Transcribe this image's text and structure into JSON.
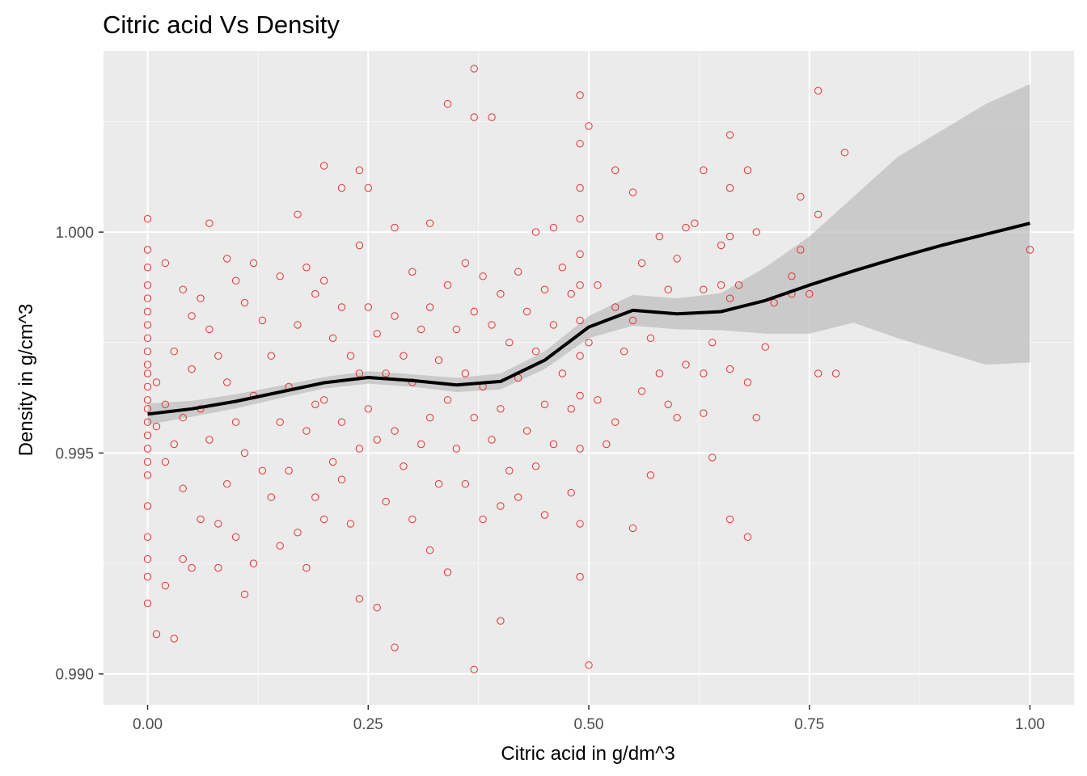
{
  "chart_data": {
    "type": "scatter",
    "title": "Citric acid Vs Density",
    "xlabel": "Citric acid in g/dm^3",
    "ylabel": "Density in g/cm^3",
    "xlim": [
      -0.05,
      1.05
    ],
    "ylim": [
      0.9893,
      1.0041
    ],
    "x_ticks": [
      0.0,
      0.25,
      0.5,
      0.75,
      1.0
    ],
    "x_tick_labels": [
      "0.00",
      "0.25",
      "0.50",
      "0.75",
      "1.00"
    ],
    "y_ticks": [
      0.99,
      0.995,
      1.0
    ],
    "y_tick_labels": [
      "0.990",
      "0.995",
      "1.000"
    ],
    "grid": true,
    "colors": {
      "panel_background": "#ebebeb",
      "grid_line": "#ffffff",
      "point_stroke": "#e8302d",
      "smooth_line": "#000000",
      "confidence_band": "#bfbfbf"
    },
    "series": [
      {
        "kind": "points",
        "points": [
          [
            0.0,
            1.0003
          ],
          [
            0.0,
            0.9996
          ],
          [
            0.0,
            0.9992
          ],
          [
            0.0,
            0.9988
          ],
          [
            0.0,
            0.9985
          ],
          [
            0.0,
            0.9982
          ],
          [
            0.0,
            0.9979
          ],
          [
            0.0,
            0.9976
          ],
          [
            0.0,
            0.9973
          ],
          [
            0.0,
            0.997
          ],
          [
            0.0,
            0.9968
          ],
          [
            0.0,
            0.9965
          ],
          [
            0.0,
            0.9962
          ],
          [
            0.0,
            0.996
          ],
          [
            0.0,
            0.9957
          ],
          [
            0.0,
            0.9954
          ],
          [
            0.0,
            0.9951
          ],
          [
            0.0,
            0.9948
          ],
          [
            0.0,
            0.9945
          ],
          [
            0.0,
            0.9938
          ],
          [
            0.0,
            0.9931
          ],
          [
            0.0,
            0.9926
          ],
          [
            0.0,
            0.9922
          ],
          [
            0.0,
            0.9916
          ],
          [
            0.01,
            0.9909
          ],
          [
            0.03,
            0.9908
          ],
          [
            0.01,
            0.9966
          ],
          [
            0.01,
            0.9956
          ],
          [
            0.02,
            0.9993
          ],
          [
            0.02,
            0.9961
          ],
          [
            0.02,
            0.9948
          ],
          [
            0.02,
            0.992
          ],
          [
            0.03,
            0.9973
          ],
          [
            0.03,
            0.9952
          ],
          [
            0.04,
            0.9987
          ],
          [
            0.04,
            0.9958
          ],
          [
            0.04,
            0.9942
          ],
          [
            0.04,
            0.9926
          ],
          [
            0.05,
            0.9981
          ],
          [
            0.05,
            0.9969
          ],
          [
            0.05,
            0.9924
          ],
          [
            0.06,
            0.9985
          ],
          [
            0.06,
            0.996
          ],
          [
            0.06,
            0.9935
          ],
          [
            0.07,
            1.0002
          ],
          [
            0.07,
            0.9978
          ],
          [
            0.07,
            0.9953
          ],
          [
            0.08,
            0.9972
          ],
          [
            0.08,
            0.9934
          ],
          [
            0.08,
            0.9924
          ],
          [
            0.09,
            0.9994
          ],
          [
            0.09,
            0.9966
          ],
          [
            0.09,
            0.9943
          ],
          [
            0.1,
            0.9989
          ],
          [
            0.1,
            0.9957
          ],
          [
            0.1,
            0.9931
          ],
          [
            0.11,
            0.9984
          ],
          [
            0.11,
            0.995
          ],
          [
            0.11,
            0.9918
          ],
          [
            0.12,
            0.9993
          ],
          [
            0.12,
            0.9963
          ],
          [
            0.12,
            0.9925
          ],
          [
            0.13,
            0.998
          ],
          [
            0.13,
            0.9946
          ],
          [
            0.14,
            0.9972
          ],
          [
            0.14,
            0.994
          ],
          [
            0.15,
            0.999
          ],
          [
            0.15,
            0.9957
          ],
          [
            0.15,
            0.9929
          ],
          [
            0.16,
            0.9965
          ],
          [
            0.16,
            0.9946
          ],
          [
            0.17,
            1.0004
          ],
          [
            0.17,
            0.9979
          ],
          [
            0.17,
            0.9932
          ],
          [
            0.18,
            0.9992
          ],
          [
            0.18,
            0.9955
          ],
          [
            0.18,
            0.9924
          ],
          [
            0.19,
            0.9986
          ],
          [
            0.19,
            0.9961
          ],
          [
            0.19,
            0.994
          ],
          [
            0.2,
            1.0015
          ],
          [
            0.2,
            0.9989
          ],
          [
            0.2,
            0.9962
          ],
          [
            0.2,
            0.9935
          ],
          [
            0.21,
            0.9976
          ],
          [
            0.21,
            0.9948
          ],
          [
            0.22,
            1.001
          ],
          [
            0.22,
            0.9983
          ],
          [
            0.22,
            0.9957
          ],
          [
            0.22,
            0.9944
          ],
          [
            0.23,
            0.9972
          ],
          [
            0.23,
            0.9934
          ],
          [
            0.24,
            1.0014
          ],
          [
            0.24,
            0.9997
          ],
          [
            0.24,
            0.9968
          ],
          [
            0.24,
            0.9951
          ],
          [
            0.24,
            0.9917
          ],
          [
            0.25,
            1.001
          ],
          [
            0.25,
            0.9983
          ],
          [
            0.25,
            0.996
          ],
          [
            0.26,
            0.9977
          ],
          [
            0.26,
            0.9953
          ],
          [
            0.26,
            0.9915
          ],
          [
            0.27,
            0.9968
          ],
          [
            0.27,
            0.9939
          ],
          [
            0.28,
            1.0001
          ],
          [
            0.28,
            0.9981
          ],
          [
            0.28,
            0.9955
          ],
          [
            0.28,
            0.9906
          ],
          [
            0.29,
            0.9972
          ],
          [
            0.29,
            0.9947
          ],
          [
            0.3,
            0.9991
          ],
          [
            0.3,
            0.9966
          ],
          [
            0.3,
            0.9935
          ],
          [
            0.31,
            0.9978
          ],
          [
            0.31,
            0.9952
          ],
          [
            0.32,
            1.0002
          ],
          [
            0.32,
            0.9983
          ],
          [
            0.32,
            0.9958
          ],
          [
            0.32,
            0.9928
          ],
          [
            0.33,
            0.9971
          ],
          [
            0.33,
            0.9943
          ],
          [
            0.34,
            1.0029
          ],
          [
            0.34,
            0.9988
          ],
          [
            0.34,
            0.9962
          ],
          [
            0.34,
            0.9923
          ],
          [
            0.35,
            0.9978
          ],
          [
            0.35,
            0.9951
          ],
          [
            0.36,
            0.9993
          ],
          [
            0.36,
            0.9968
          ],
          [
            0.36,
            0.9943
          ],
          [
            0.37,
            1.0037
          ],
          [
            0.37,
            1.0026
          ],
          [
            0.37,
            0.9982
          ],
          [
            0.37,
            0.9958
          ],
          [
            0.37,
            0.9901
          ],
          [
            0.38,
            0.999
          ],
          [
            0.38,
            0.9965
          ],
          [
            0.38,
            0.9935
          ],
          [
            0.39,
            1.0026
          ],
          [
            0.39,
            0.9979
          ],
          [
            0.39,
            0.9953
          ],
          [
            0.4,
            0.9986
          ],
          [
            0.4,
            0.996
          ],
          [
            0.4,
            0.9938
          ],
          [
            0.4,
            0.9912
          ],
          [
            0.41,
            0.9975
          ],
          [
            0.41,
            0.9946
          ],
          [
            0.42,
            0.9991
          ],
          [
            0.42,
            0.9967
          ],
          [
            0.42,
            0.994
          ],
          [
            0.43,
            0.9982
          ],
          [
            0.43,
            0.9955
          ],
          [
            0.44,
            1.0
          ],
          [
            0.44,
            0.9973
          ],
          [
            0.44,
            0.9947
          ],
          [
            0.45,
            0.9987
          ],
          [
            0.45,
            0.9961
          ],
          [
            0.45,
            0.9936
          ],
          [
            0.46,
            1.0001
          ],
          [
            0.46,
            0.9979
          ],
          [
            0.46,
            0.9952
          ],
          [
            0.47,
            0.9992
          ],
          [
            0.47,
            0.9968
          ],
          [
            0.48,
            0.9986
          ],
          [
            0.48,
            0.996
          ],
          [
            0.48,
            0.9941
          ],
          [
            0.49,
            1.0031
          ],
          [
            0.49,
            1.002
          ],
          [
            0.49,
            1.001
          ],
          [
            0.49,
            1.0003
          ],
          [
            0.49,
            0.9995
          ],
          [
            0.49,
            0.9988
          ],
          [
            0.49,
            0.998
          ],
          [
            0.49,
            0.9972
          ],
          [
            0.49,
            0.9963
          ],
          [
            0.49,
            0.9951
          ],
          [
            0.49,
            0.9934
          ],
          [
            0.49,
            0.9922
          ],
          [
            0.5,
            1.0024
          ],
          [
            0.5,
            0.9975
          ],
          [
            0.5,
            0.9902
          ],
          [
            0.51,
            0.9988
          ],
          [
            0.51,
            0.9962
          ],
          [
            0.52,
            0.9952
          ],
          [
            0.53,
            1.0014
          ],
          [
            0.53,
            0.9983
          ],
          [
            0.53,
            0.9957
          ],
          [
            0.54,
            0.9973
          ],
          [
            0.55,
            1.0009
          ],
          [
            0.55,
            0.998
          ],
          [
            0.55,
            0.9933
          ],
          [
            0.56,
            0.9993
          ],
          [
            0.56,
            0.9964
          ],
          [
            0.57,
            0.9945
          ],
          [
            0.57,
            0.9976
          ],
          [
            0.58,
            0.9999
          ],
          [
            0.58,
            0.9968
          ],
          [
            0.59,
            0.9987
          ],
          [
            0.59,
            0.9961
          ],
          [
            0.6,
            0.9994
          ],
          [
            0.6,
            0.9958
          ],
          [
            0.61,
            1.0001
          ],
          [
            0.61,
            0.997
          ],
          [
            0.62,
            1.0002
          ],
          [
            0.63,
            1.0014
          ],
          [
            0.63,
            0.9987
          ],
          [
            0.63,
            0.9968
          ],
          [
            0.63,
            0.9959
          ],
          [
            0.64,
            0.9949
          ],
          [
            0.64,
            0.9975
          ],
          [
            0.65,
            0.9997
          ],
          [
            0.65,
            0.9988
          ],
          [
            0.66,
            1.0022
          ],
          [
            0.66,
            1.001
          ],
          [
            0.66,
            0.9999
          ],
          [
            0.66,
            0.9985
          ],
          [
            0.66,
            0.9969
          ],
          [
            0.66,
            0.9935
          ],
          [
            0.67,
            0.9988
          ],
          [
            0.68,
            1.0014
          ],
          [
            0.68,
            0.9966
          ],
          [
            0.68,
            0.9931
          ],
          [
            0.69,
            1.0
          ],
          [
            0.69,
            0.9958
          ],
          [
            0.7,
            0.9974
          ],
          [
            0.71,
            0.9984
          ],
          [
            0.73,
            0.999
          ],
          [
            0.73,
            0.9986
          ],
          [
            0.74,
            1.0008
          ],
          [
            0.74,
            0.9996
          ],
          [
            0.75,
            0.9986
          ],
          [
            0.76,
            1.0032
          ],
          [
            0.76,
            1.0004
          ],
          [
            0.76,
            0.9968
          ],
          [
            0.78,
            0.9968
          ],
          [
            0.79,
            1.0018
          ],
          [
            1.0,
            0.9996
          ]
        ]
      },
      {
        "kind": "smooth",
        "line": [
          [
            0.0,
            0.99588
          ],
          [
            0.05,
            0.996
          ],
          [
            0.1,
            0.99617
          ],
          [
            0.15,
            0.99638
          ],
          [
            0.2,
            0.99659
          ],
          [
            0.25,
            0.99671
          ],
          [
            0.3,
            0.99664
          ],
          [
            0.35,
            0.99654
          ],
          [
            0.4,
            0.99662
          ],
          [
            0.45,
            0.9971
          ],
          [
            0.5,
            0.99785
          ],
          [
            0.55,
            0.99823
          ],
          [
            0.6,
            0.99815
          ],
          [
            0.65,
            0.9982
          ],
          [
            0.7,
            0.99845
          ],
          [
            0.75,
            0.9988
          ],
          [
            0.8,
            0.99912
          ],
          [
            0.85,
            0.99942
          ],
          [
            0.9,
            0.9997
          ],
          [
            0.95,
            0.99995
          ],
          [
            1.0,
            1.0002
          ]
        ],
        "band_upper": [
          [
            0.0,
            0.99612
          ],
          [
            0.05,
            0.99618
          ],
          [
            0.1,
            0.99633
          ],
          [
            0.15,
            0.99652
          ],
          [
            0.2,
            0.99672
          ],
          [
            0.25,
            0.99685
          ],
          [
            0.3,
            0.99678
          ],
          [
            0.35,
            0.9967
          ],
          [
            0.4,
            0.9968
          ],
          [
            0.45,
            0.9973
          ],
          [
            0.5,
            0.9981
          ],
          [
            0.55,
            0.99858
          ],
          [
            0.6,
            0.9985
          ],
          [
            0.65,
            0.99862
          ],
          [
            0.7,
            0.9992
          ],
          [
            0.75,
            0.9999
          ],
          [
            0.8,
            1.0008
          ],
          [
            0.85,
            1.0017
          ],
          [
            0.9,
            1.0023
          ],
          [
            0.95,
            1.0029
          ],
          [
            1.0,
            1.00335
          ]
        ],
        "band_lower": [
          [
            0.0,
            0.99564
          ],
          [
            0.05,
            0.99582
          ],
          [
            0.1,
            0.99601
          ],
          [
            0.15,
            0.99624
          ],
          [
            0.2,
            0.99646
          ],
          [
            0.25,
            0.99657
          ],
          [
            0.3,
            0.9965
          ],
          [
            0.35,
            0.99638
          ],
          [
            0.4,
            0.99644
          ],
          [
            0.45,
            0.9969
          ],
          [
            0.5,
            0.9976
          ],
          [
            0.55,
            0.99788
          ],
          [
            0.6,
            0.9978
          ],
          [
            0.65,
            0.99778
          ],
          [
            0.7,
            0.9977
          ],
          [
            0.75,
            0.9977
          ],
          [
            0.8,
            0.99795
          ],
          [
            0.85,
            0.9976
          ],
          [
            0.9,
            0.9973
          ],
          [
            0.95,
            0.997
          ],
          [
            1.0,
            0.99705
          ]
        ]
      }
    ]
  }
}
